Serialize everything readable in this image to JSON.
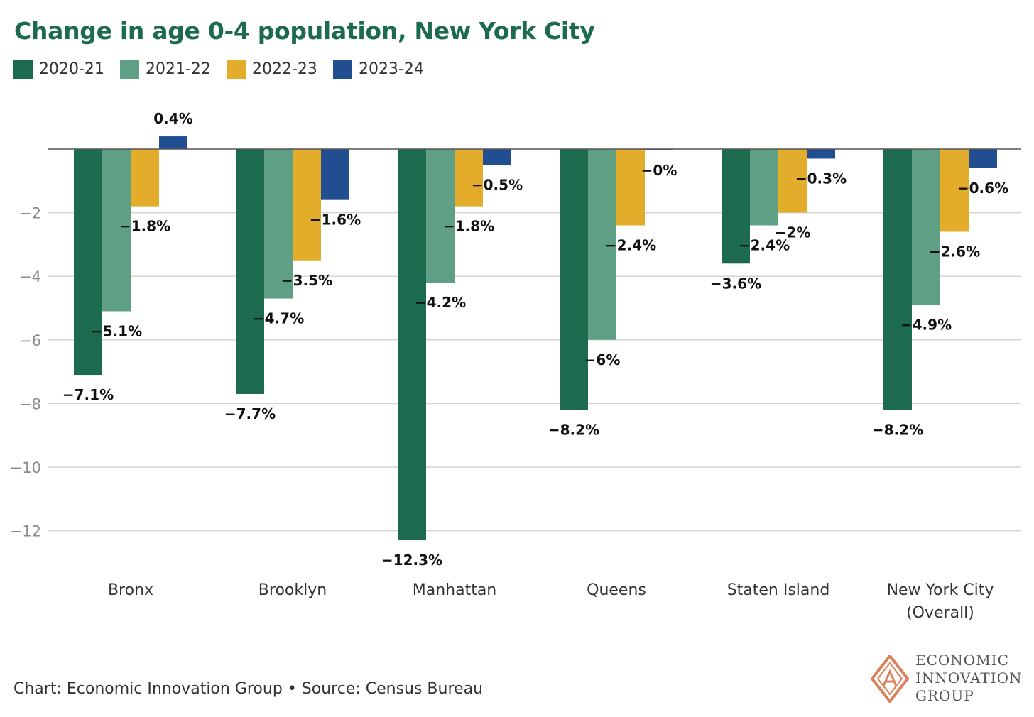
{
  "title": "Change in age 0-4 population, New York City",
  "legend": [
    {
      "label": "2020-21",
      "color": "#1d6b4e"
    },
    {
      "label": "2021-22",
      "color": "#5fa084"
    },
    {
      "label": "2022-23",
      "color": "#e3ad2b"
    },
    {
      "label": "2023-24",
      "color": "#214d91"
    }
  ],
  "chart_data": {
    "type": "bar",
    "categories": [
      "Bronx",
      "Brooklyn",
      "Manhattan",
      "Queens",
      "Staten Island",
      "New York City (Overall)"
    ],
    "series": [
      {
        "name": "2020-21",
        "color": "#1d6b4e",
        "values": [
          -7.1,
          -7.7,
          -12.3,
          -8.2,
          -3.6,
          -8.2
        ],
        "labels": [
          "−7.1%",
          "−7.7%",
          "−12.3%",
          "−8.2%",
          "−3.6%",
          "−8.2%"
        ]
      },
      {
        "name": "2021-22",
        "color": "#5fa084",
        "values": [
          -5.1,
          -4.7,
          -4.2,
          -6.0,
          -2.4,
          -4.9
        ],
        "labels": [
          "−5.1%",
          "−4.7%",
          "−4.2%",
          "−6%",
          "−2.4%",
          "−4.9%"
        ]
      },
      {
        "name": "2022-23",
        "color": "#e3ad2b",
        "values": [
          -1.8,
          -3.5,
          -1.8,
          -2.4,
          -2.0,
          -2.6
        ],
        "labels": [
          "−1.8%",
          "−3.5%",
          "−1.8%",
          "−2.4%",
          "−2%",
          "−2.6%"
        ]
      },
      {
        "name": "2023-24",
        "color": "#214d91",
        "values": [
          0.4,
          -1.6,
          -0.5,
          -0.04,
          -0.3,
          -0.6
        ],
        "labels": [
          "0.4%",
          "−1.6%",
          "−0.5%",
          "−0%",
          "−0.3%",
          "−0.6%"
        ]
      }
    ],
    "y_ticks": [
      -2,
      -4,
      -6,
      -8,
      -10,
      -12
    ],
    "y_tick_labels": [
      "−2",
      "−4",
      "−6",
      "−8",
      "−10",
      "−12"
    ],
    "ylim": [
      -13,
      0.5
    ],
    "grid": true,
    "legend_position": "top-left"
  },
  "footer": "Chart: Economic Innovation Group • Source: Census Bureau",
  "logo": {
    "line1": "ECONOMIC",
    "line2": "INNOVATION",
    "line3": "GROUP",
    "color": "#d9825b"
  }
}
